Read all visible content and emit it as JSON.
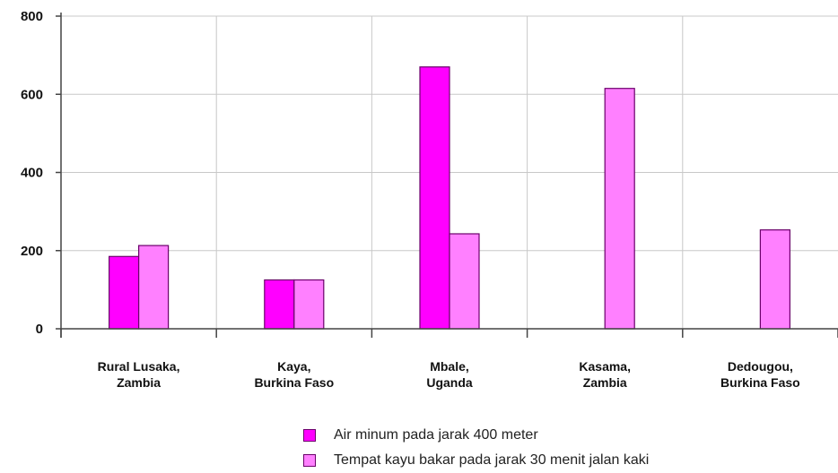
{
  "chart_data": {
    "type": "bar",
    "categories": [
      [
        "Rural Lusaka,",
        "Zambia"
      ],
      [
        "Kaya,",
        "Burkina Faso"
      ],
      [
        "Mbale,",
        "Uganda"
      ],
      [
        "Kasama,",
        "Zambia"
      ],
      [
        "Dedougou,",
        "Burkina Faso"
      ]
    ],
    "series": [
      {
        "name": "Air minum pada jarak 400 meter",
        "color": "#ff00ff",
        "values": [
          185,
          125,
          670,
          0,
          0
        ]
      },
      {
        "name": "Tempat kayu bakar pada jarak 30 menit jalan kaki",
        "color": "#ff80ff",
        "values": [
          213,
          125,
          243,
          615,
          253
        ]
      }
    ],
    "yticks": [
      0,
      200,
      400,
      600,
      800
    ],
    "ylim": [
      0,
      800
    ],
    "grid": true,
    "legend_position": "bottom"
  }
}
